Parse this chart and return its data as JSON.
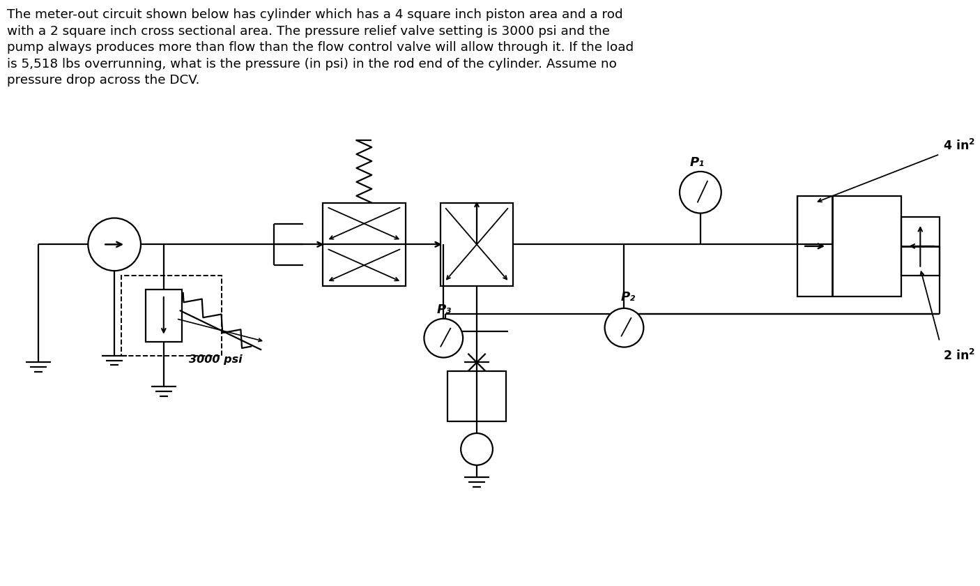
{
  "bg_color": "#ffffff",
  "line_color": "#000000",
  "text_color": "#000000",
  "paragraph": "The meter-out circuit shown below has cylinder which has a 4 square inch piston area and a rod\nwith a 2 square inch cross sectional area. The pressure relief valve setting is 3000 psi and the\npump always produces more than flow than the flow control valve will allow through it. If the load\nis 5,518 lbs overrunning, what is the pressure (in psi) in the rod end of the cylinder. Assume no\npressure drop across the DCV.",
  "label_3000": "3000 psi",
  "label_P1": "P₁",
  "label_P2": "P₂",
  "label_P3": "P₃",
  "lw": 1.6
}
